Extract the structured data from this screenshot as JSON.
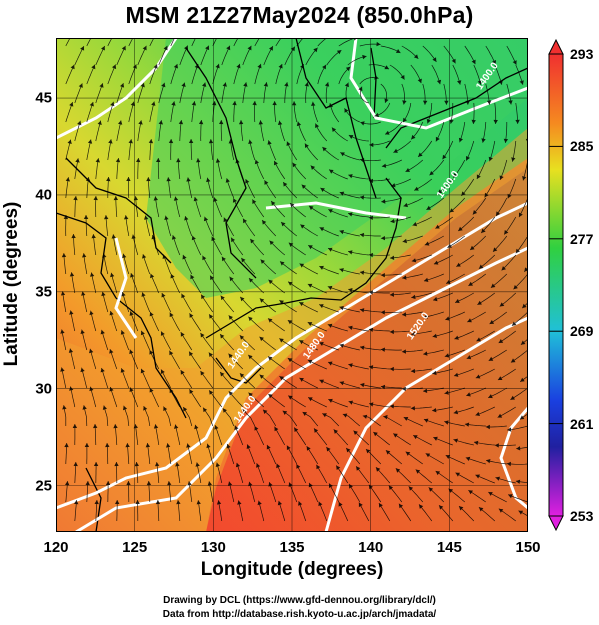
{
  "title": "MSM 21Z27May2024 (850.0hPa)",
  "xlabel": "Longitude (degrees)",
  "ylabel": "Latitude  (degrees)",
  "x_ticks": [
    {
      "value": 120,
      "label": "120"
    },
    {
      "value": 125,
      "label": "125"
    },
    {
      "value": 130,
      "label": "130"
    },
    {
      "value": 135,
      "label": "135"
    },
    {
      "value": 140,
      "label": "140"
    },
    {
      "value": 145,
      "label": "145"
    },
    {
      "value": 150,
      "label": "150"
    }
  ],
  "y_ticks": [
    {
      "value": 25,
      "label": "25"
    },
    {
      "value": 30,
      "label": "30"
    },
    {
      "value": 35,
      "label": "35"
    },
    {
      "value": 40,
      "label": "40"
    },
    {
      "value": 45,
      "label": "45"
    }
  ],
  "lon_range": [
    120,
    150
  ],
  "lat_range": [
    22.6,
    48.1
  ],
  "colorbar": {
    "range": [
      253,
      293
    ],
    "ticks": [
      {
        "value": 293,
        "label": "293"
      },
      {
        "value": 285,
        "label": "285"
      },
      {
        "value": 277,
        "label": "277"
      },
      {
        "value": 269,
        "label": "269"
      },
      {
        "value": 261,
        "label": "261"
      },
      {
        "value": 253,
        "label": "253"
      }
    ]
  },
  "contour_labels": [
    {
      "text": "1440.0",
      "lon": 131.2,
      "lat": 31.0
    },
    {
      "text": "1440.0",
      "lon": 131.6,
      "lat": 28.2
    },
    {
      "text": "1480.0",
      "lon": 136.0,
      "lat": 31.5
    },
    {
      "text": "1520.0",
      "lon": 142.6,
      "lat": 32.5
    },
    {
      "text": "1400.0",
      "lon": 144.5,
      "lat": 39.8
    },
    {
      "text": "1400.0",
      "lon": 147.0,
      "lat": 45.4
    }
  ],
  "footer": {
    "line1": "Drawing by DCL (https://www.gfd-dennou.org/library/dcl/)",
    "line2": "Data from http://database.rish.kyoto-u.ac.jp/arch/jmadata/"
  }
}
